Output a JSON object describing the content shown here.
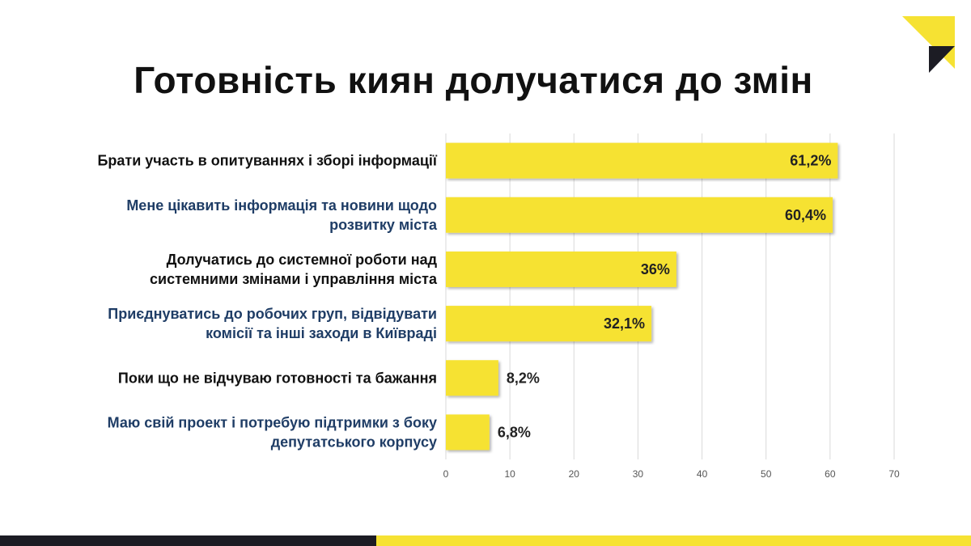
{
  "chart_data": {
    "type": "bar",
    "orientation": "horizontal",
    "title": "Готовність киян долучатися до змін",
    "categories": [
      [
        "Брати участь в опитуваннях і зборі інформації"
      ],
      [
        "Мене цікавить інформація та новини щодо",
        "розвитку міста"
      ],
      [
        "Долучатись до системної роботи над",
        "системними змінами і управління міста"
      ],
      [
        "Приєднуватись до робочих груп, відвідувати",
        "комісії та інші заходи в Київраді"
      ],
      [
        "Поки що не відчуваю готовності та бажання"
      ],
      [
        "Маю свій проект і потребую підтримки з боку",
        "депутатського корпусу"
      ]
    ],
    "values": [
      61.2,
      60.4,
      36,
      32.1,
      8.2,
      6.8
    ],
    "value_labels": [
      "61,2%",
      "60,4%",
      "36%",
      "32,1%",
      "8,2%",
      "6,8%"
    ],
    "xlim": [
      0,
      70
    ],
    "xticks": [
      0,
      10,
      20,
      30,
      40,
      50,
      60,
      70
    ],
    "grid": true,
    "xlabel": "",
    "ylabel": ""
  },
  "colors": {
    "bar": "#f6e233",
    "label_dark": "#111111",
    "label_blue": "#1f3d66",
    "grid": "#d9d9d9"
  }
}
